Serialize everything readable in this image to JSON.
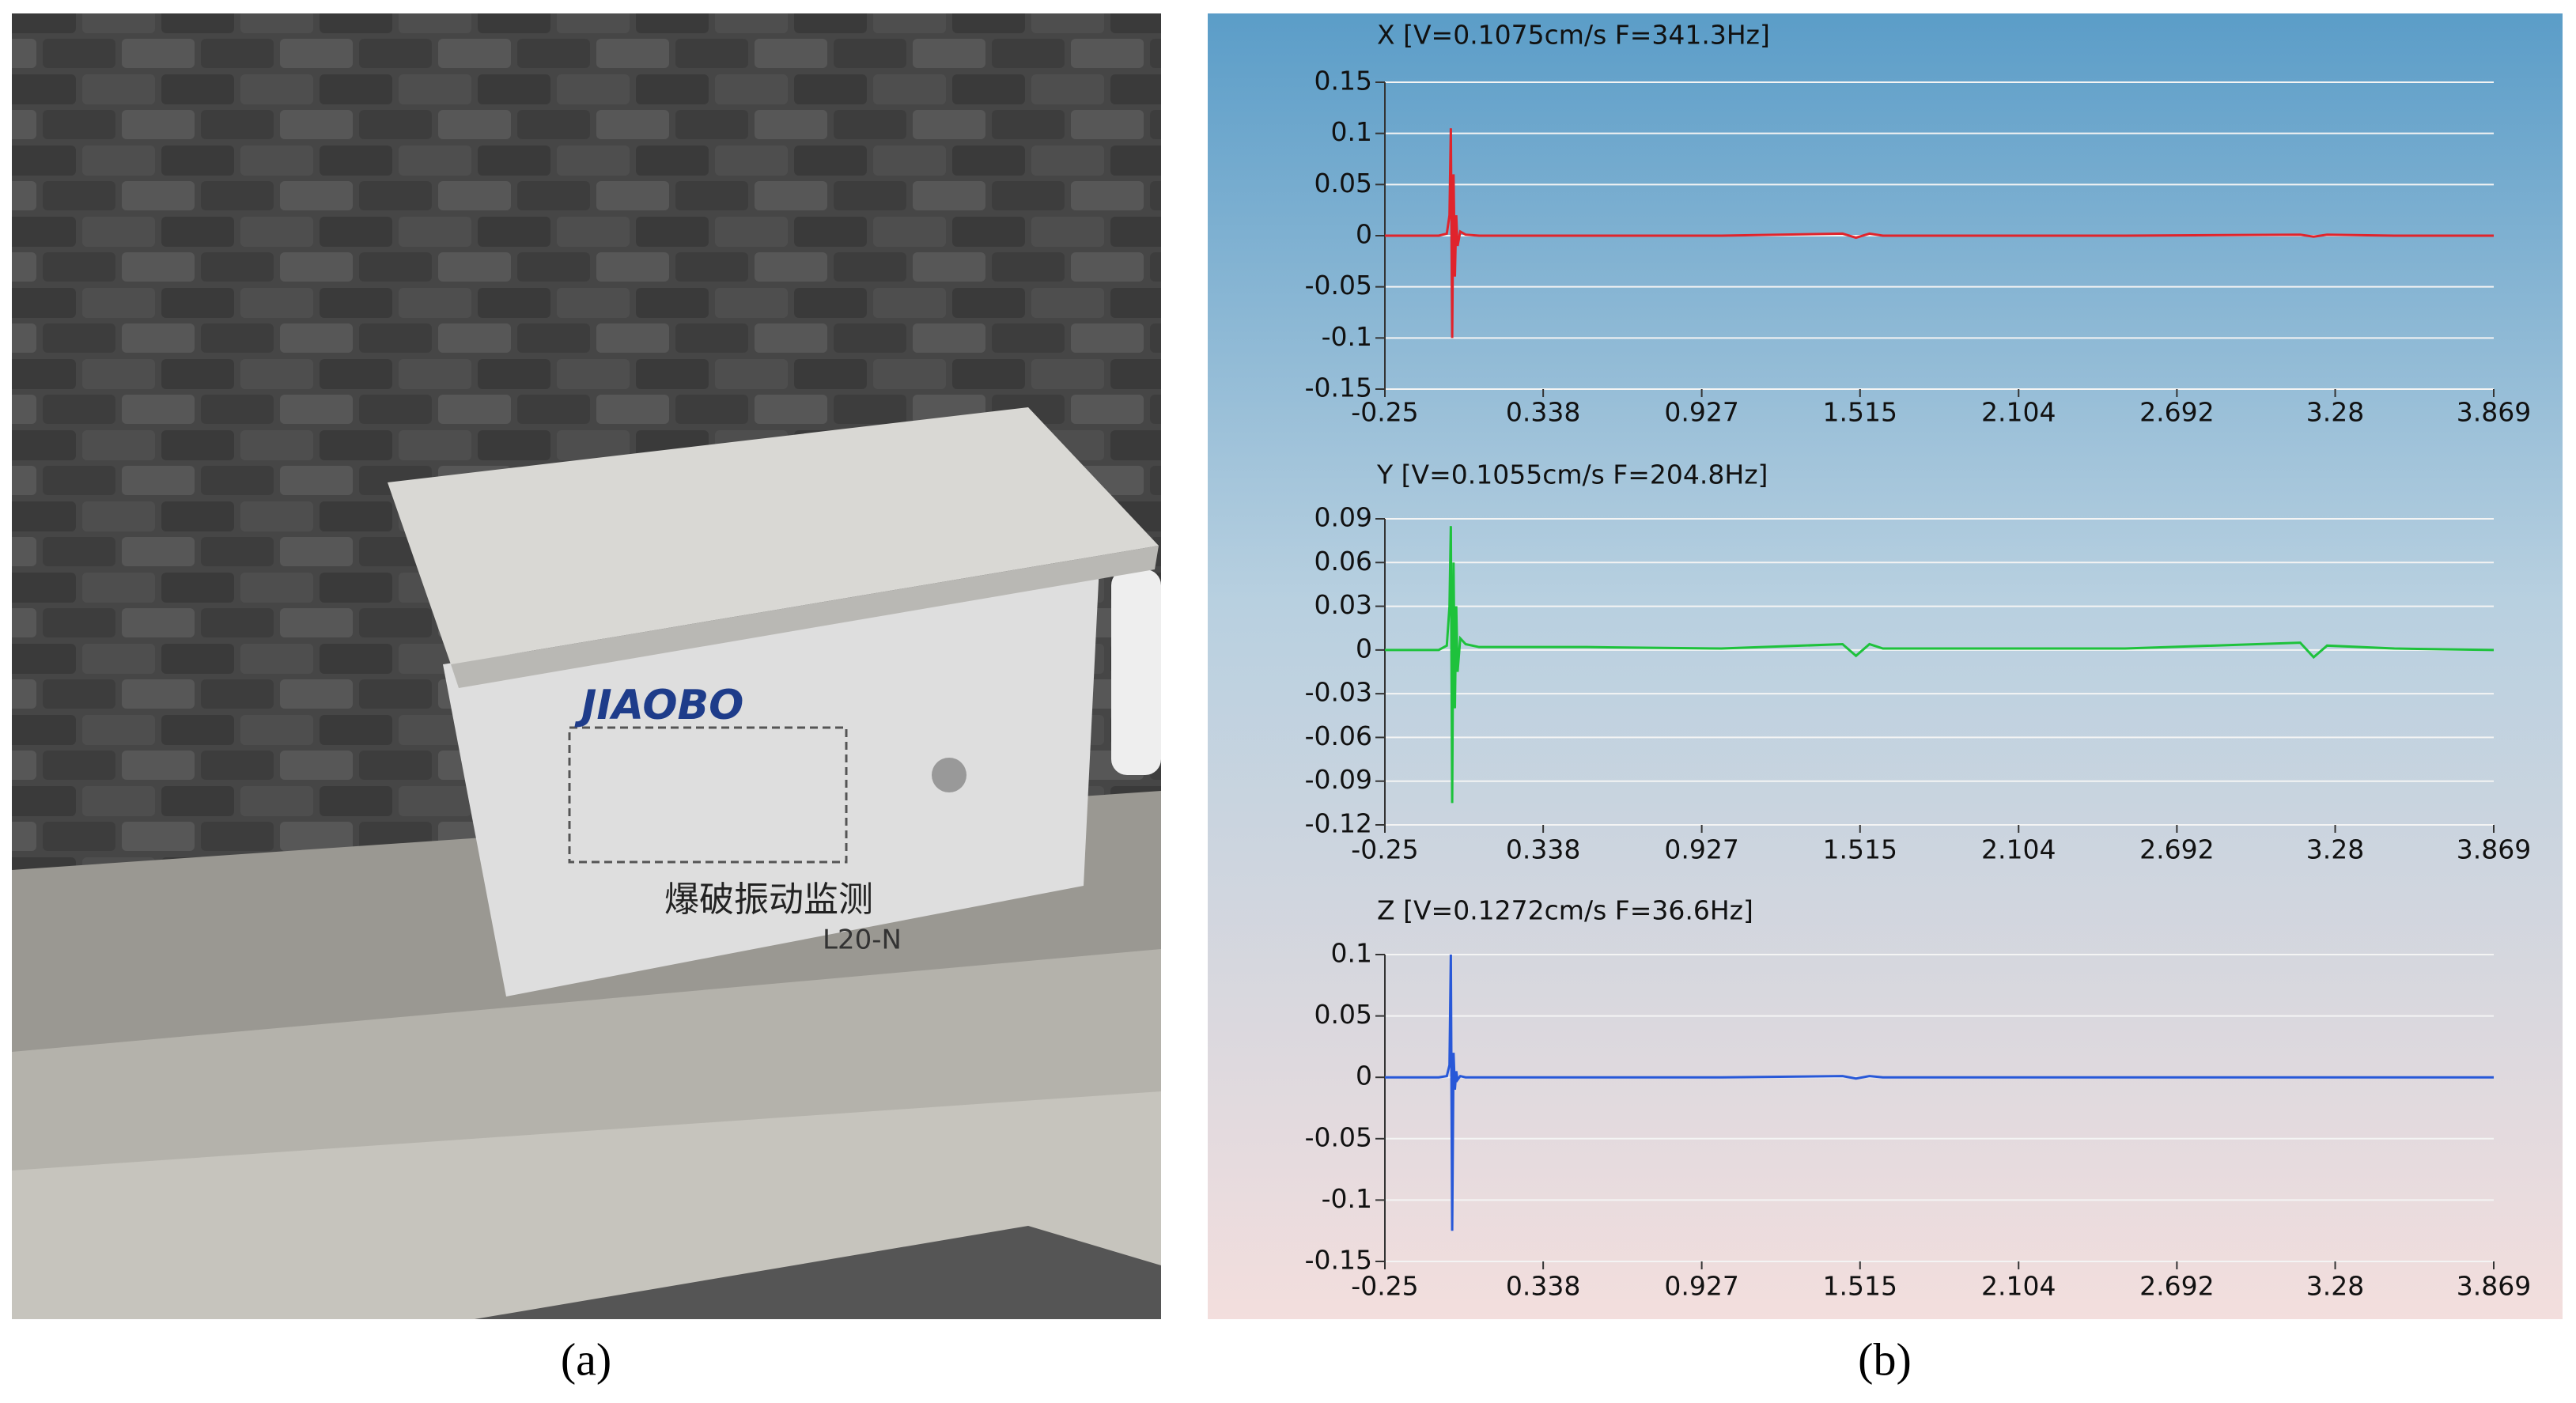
{
  "photo": {
    "labels": [
      "JIAOBO",
      "爆破振动监测",
      "L20-N"
    ]
  },
  "panel_labels": [
    "(a)",
    "(b)"
  ],
  "chart_data": [
    {
      "type": "line",
      "title": "X [V=0.1075cm/s F=341.3Hz]",
      "color": "#e0242c",
      "x": [
        -0.25,
        -0.05,
        -0.02,
        -0.01,
        -0.005,
        0,
        0.005,
        0.01,
        0.015,
        0.02,
        0.03,
        0.05,
        0.1,
        0.5,
        1.0,
        1.45,
        1.5,
        1.55,
        1.6,
        2.0,
        2.5,
        3.15,
        3.2,
        3.25,
        3.5,
        3.869
      ],
      "values": [
        0,
        0,
        0.002,
        0.02,
        0.105,
        -0.1,
        0.06,
        -0.04,
        0.02,
        -0.01,
        0.004,
        0.001,
        0,
        0,
        0,
        0.002,
        -0.002,
        0.002,
        0,
        0,
        0,
        0.001,
        -0.001,
        0.001,
        0,
        0
      ],
      "xlim": [
        -0.25,
        3.869
      ],
      "xticks": [
        -0.25,
        0.338,
        0.927,
        1.515,
        2.104,
        2.692,
        3.28,
        3.869
      ],
      "ylim": [
        -0.15,
        0.15
      ],
      "yticks": [
        -0.15,
        -0.1,
        -0.05,
        0,
        0.05,
        0.1,
        0.15
      ],
      "grid": true
    },
    {
      "type": "line",
      "title": "Y [V=0.1055cm/s F=204.8Hz]",
      "color": "#1ec23c",
      "x": [
        -0.25,
        -0.05,
        -0.02,
        -0.01,
        -0.005,
        0,
        0.005,
        0.01,
        0.015,
        0.02,
        0.03,
        0.05,
        0.1,
        0.5,
        1.0,
        1.45,
        1.5,
        1.55,
        1.6,
        2.0,
        2.5,
        3.15,
        3.2,
        3.25,
        3.5,
        3.869
      ],
      "values": [
        0,
        0,
        0.003,
        0.03,
        0.085,
        -0.105,
        0.06,
        -0.04,
        0.03,
        -0.015,
        0.008,
        0.004,
        0.002,
        0.002,
        0.001,
        0.004,
        -0.004,
        0.004,
        0.001,
        0.001,
        0.001,
        0.005,
        -0.005,
        0.003,
        0.001,
        0
      ],
      "xlim": [
        -0.25,
        3.869
      ],
      "xticks": [
        -0.25,
        0.338,
        0.927,
        1.515,
        2.104,
        2.692,
        3.28,
        3.869
      ],
      "ylim": [
        -0.12,
        0.09
      ],
      "yticks": [
        -0.12,
        -0.09,
        -0.06,
        -0.03,
        0,
        0.03,
        0.06,
        0.09
      ],
      "grid": true
    },
    {
      "type": "line",
      "title": "Z [V=0.1272cm/s F=36.6Hz]",
      "color": "#2858d8",
      "x": [
        -0.25,
        -0.05,
        -0.02,
        -0.01,
        -0.005,
        0,
        0.005,
        0.01,
        0.015,
        0.02,
        0.03,
        0.05,
        0.1,
        0.5,
        1.0,
        1.45,
        1.5,
        1.55,
        1.6,
        2.0,
        2.5,
        3.15,
        3.2,
        3.25,
        3.5,
        3.869
      ],
      "values": [
        0,
        0,
        0.001,
        0.01,
        0.1,
        -0.125,
        0.02,
        -0.01,
        0.005,
        -0.002,
        0.001,
        0,
        0,
        0,
        0,
        0.001,
        -0.001,
        0.001,
        0,
        0,
        0,
        0,
        0,
        0,
        0,
        0
      ],
      "xlim": [
        -0.25,
        3.869
      ],
      "xticks": [
        -0.25,
        0.338,
        0.927,
        1.515,
        2.104,
        2.692,
        3.28,
        3.869
      ],
      "ylim": [
        -0.15,
        0.1
      ],
      "yticks": [
        -0.15,
        -0.1,
        -0.05,
        0,
        0.05,
        0.1
      ],
      "grid": true
    }
  ]
}
